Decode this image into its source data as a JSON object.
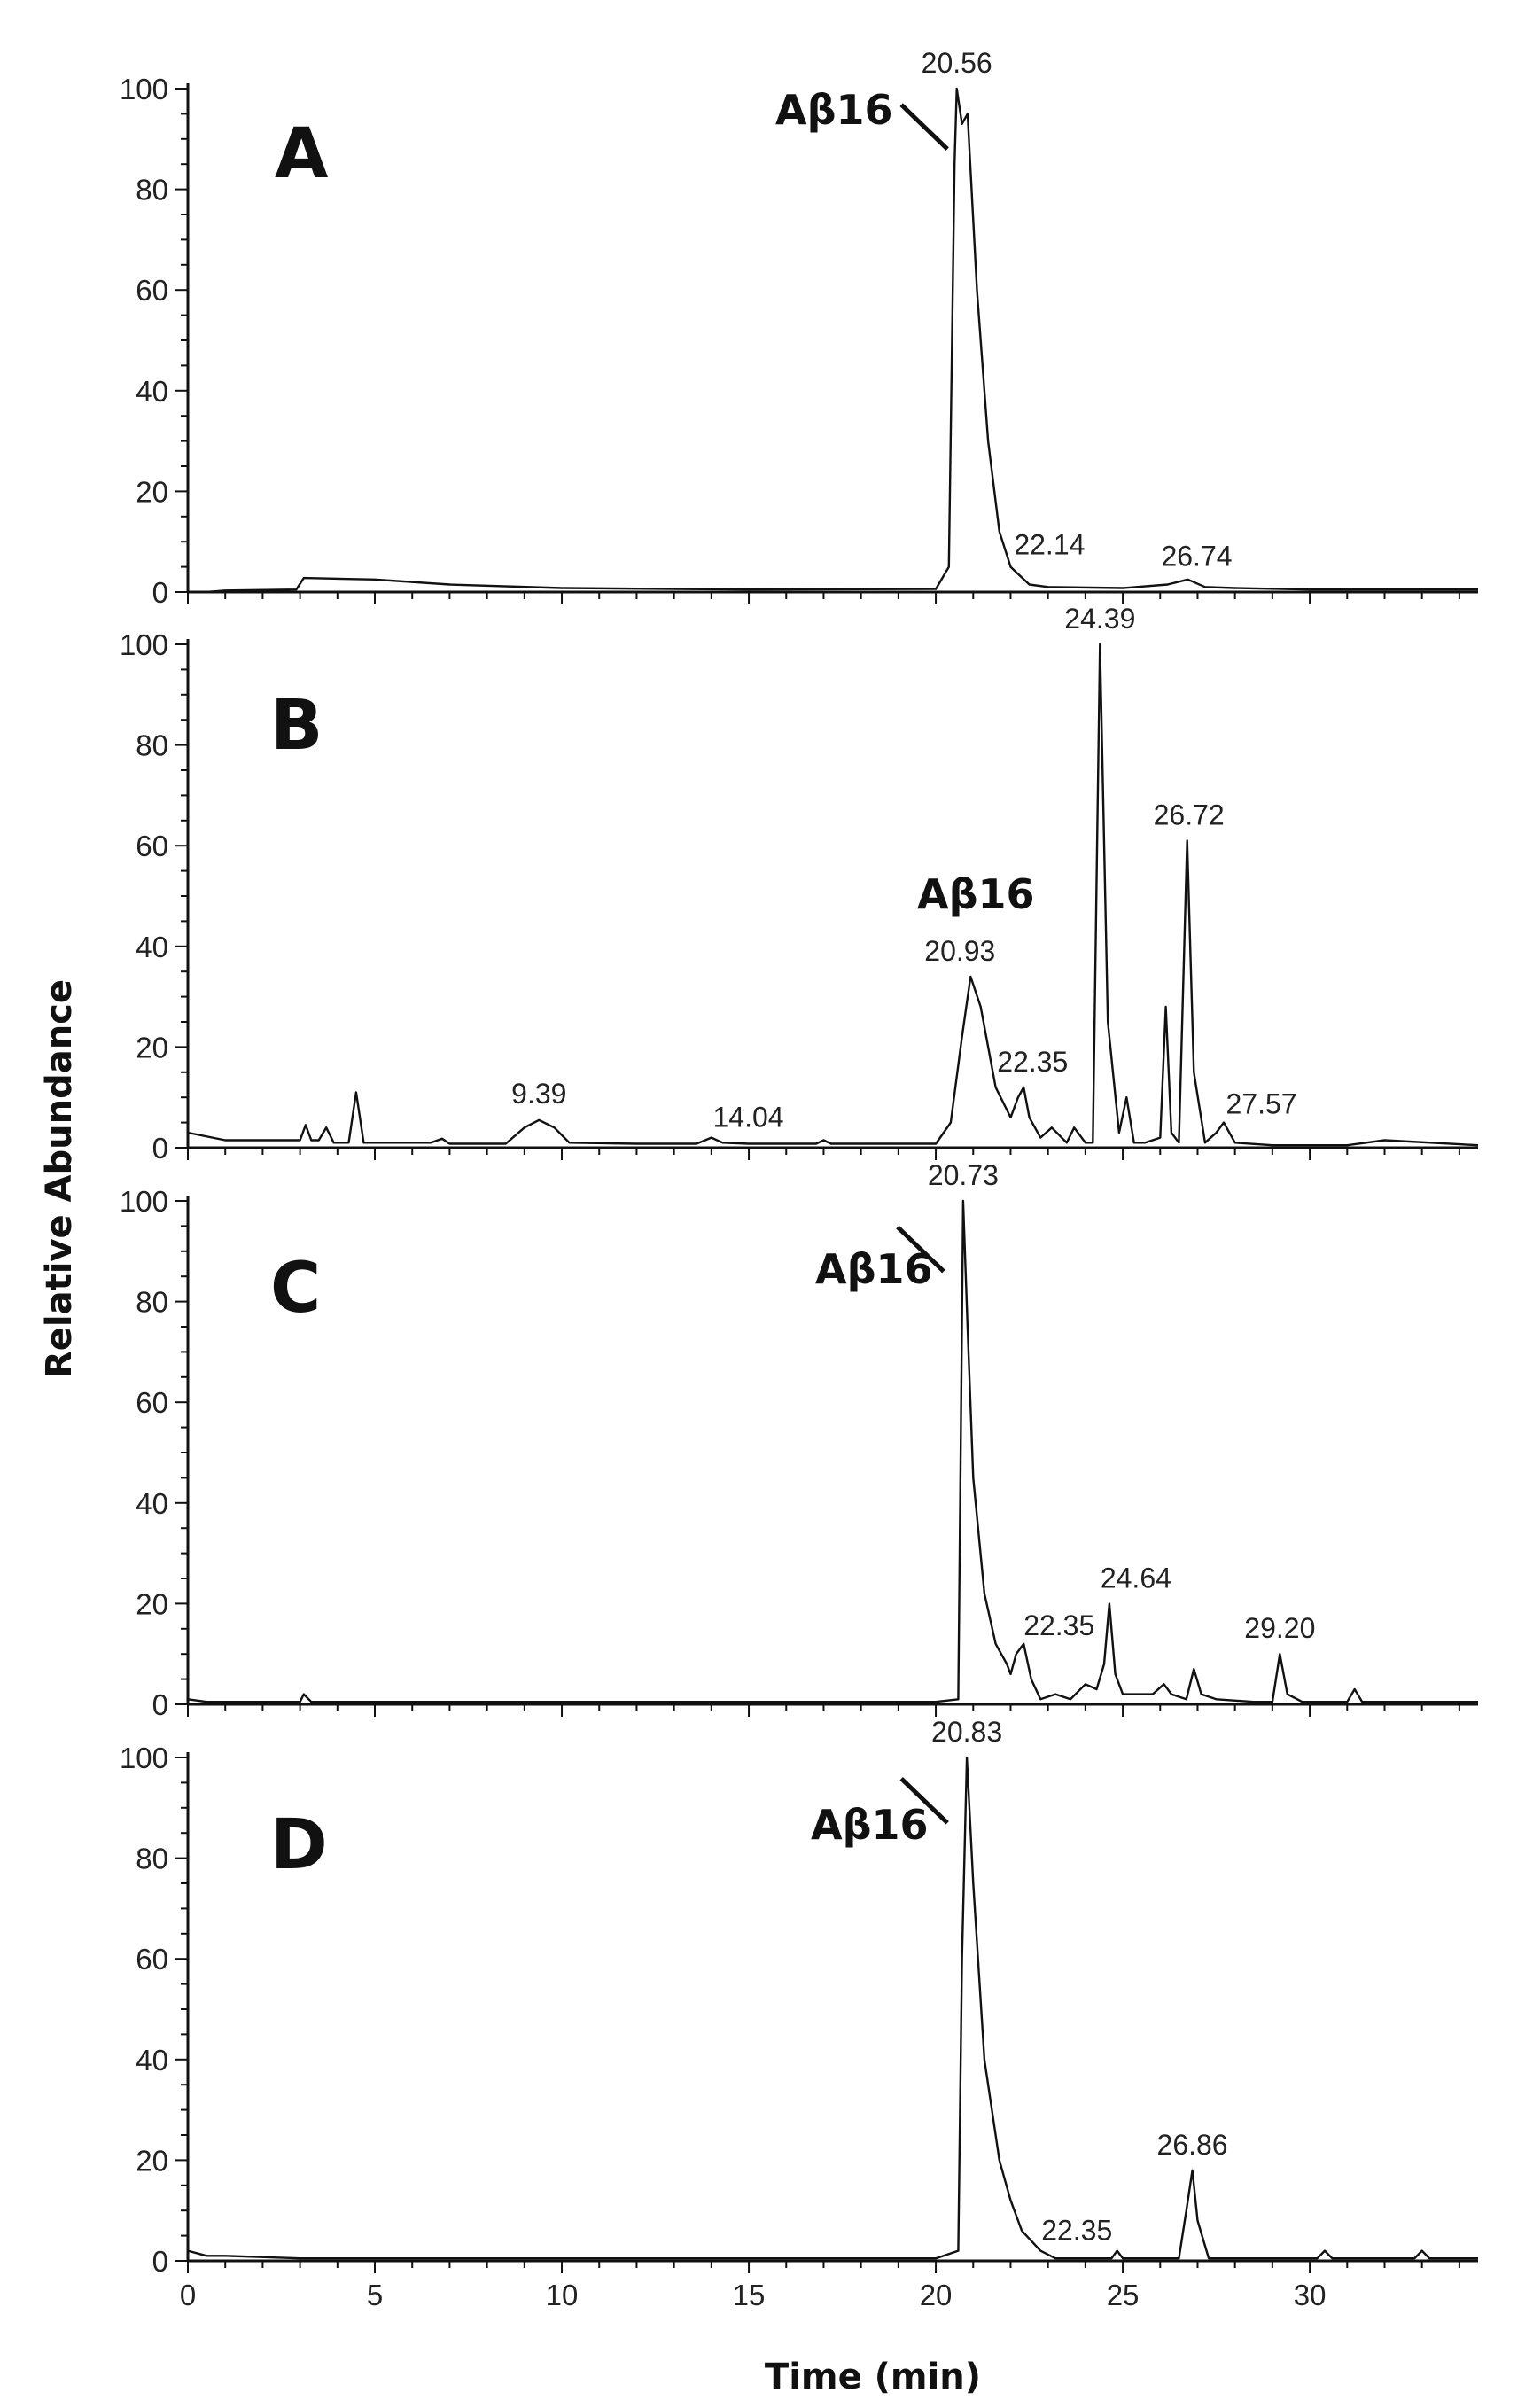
{
  "chart_data": {
    "type": "line",
    "xlabel": "Time (min)",
    "ylabel": "Relative Abundance",
    "xlim": [
      0,
      34.5
    ],
    "ylim": [
      0,
      100
    ],
    "x_ticks": [
      0,
      5,
      10,
      15,
      20,
      25,
      30
    ],
    "y_ticks": [
      0,
      20,
      40,
      60,
      80,
      100
    ],
    "grid": false,
    "panels": [
      {
        "letter": "A",
        "annotation": "Aβ16",
        "annotation_target": [
          20.5,
          88
        ],
        "peak_labels": [
          {
            "text": "20.56",
            "x": 20.56,
            "y": 100
          },
          {
            "text": "22.14",
            "x": 22.14,
            "y": 5
          },
          {
            "text": "26.74",
            "x": 26.74,
            "y": 2
          }
        ],
        "series": [
          {
            "x": [
              0,
              0.5,
              1,
              2.9,
              3.1,
              5,
              7,
              10,
              15,
              20,
              20.35,
              20.5,
              20.56,
              20.7,
              20.85,
              21.1,
              21.4,
              21.7,
              22,
              22.14,
              22.5,
              23,
              25,
              26.2,
              26.74,
              27.2,
              28,
              30,
              32,
              34.5
            ],
            "y": [
              0,
              0,
              0.3,
              0.5,
              2.8,
              2.5,
              1.5,
              0.8,
              0.5,
              0.6,
              5,
              85,
              100,
              93,
              95,
              60,
              30,
              12,
              5,
              4,
              1.5,
              1,
              0.8,
              1.5,
              2.5,
              1,
              0.8,
              0.5,
              0.5,
              0.5
            ]
          }
        ]
      },
      {
        "letter": "B",
        "annotation": "Aβ16",
        "annotation_target": null,
        "peak_labels": [
          {
            "text": "24.39",
            "x": 24.39,
            "y": 100
          },
          {
            "text": "26.72",
            "x": 26.72,
            "y": 61
          },
          {
            "text": "20.93",
            "x": 20.93,
            "y": 34
          },
          {
            "text": "22.35",
            "x": 22.35,
            "y": 12
          },
          {
            "text": "9.39",
            "x": 9.39,
            "y": 6
          },
          {
            "text": "14.04",
            "x": 14.04,
            "y": 2
          },
          {
            "text": "27.57",
            "x": 27.57,
            "y": 5
          }
        ],
        "series": [
          {
            "x": [
              0,
              1,
              2,
              3,
              3.15,
              3.3,
              3.5,
              3.7,
              3.9,
              4.3,
              4.5,
              4.7,
              5,
              6.5,
              6.8,
              7,
              8.5,
              9,
              9.39,
              9.8,
              10.2,
              12,
              13.6,
              14,
              14.3,
              15,
              16.8,
              17,
              17.2,
              20,
              20.4,
              20.7,
              20.93,
              21.2,
              21.6,
              22,
              22.2,
              22.35,
              22.5,
              22.8,
              23.1,
              23.5,
              23.7,
              24,
              24.2,
              24.39,
              24.6,
              24.9,
              25.1,
              25.3,
              25.6,
              26,
              26.15,
              26.3,
              26.5,
              26.72,
              26.9,
              27.2,
              27.5,
              27.7,
              28,
              29,
              30,
              31,
              32,
              34.5
            ],
            "y": [
              3,
              1.5,
              1.5,
              1.5,
              4.5,
              1.5,
              1.5,
              4,
              1,
              1,
              11,
              1,
              1,
              1,
              1.8,
              0.8,
              0.8,
              4,
              5.5,
              4,
              1,
              0.8,
              0.8,
              2,
              1,
              0.8,
              0.8,
              1.5,
              0.8,
              0.8,
              5,
              22,
              34,
              28,
              12,
              6,
              10,
              12,
              6,
              2,
              4,
              1,
              4,
              1,
              1,
              100,
              25,
              3,
              10,
              1,
              1,
              2,
              28,
              3,
              1,
              61,
              15,
              1,
              3,
              5,
              1,
              0.5,
              0.5,
              0.5,
              1.5,
              0.5
            ]
          }
        ]
      },
      {
        "letter": "C",
        "annotation": "Aβ16",
        "annotation_target": [
          20.4,
          86
        ],
        "peak_labels": [
          {
            "text": "20.73",
            "x": 20.73,
            "y": 100
          },
          {
            "text": "22.35",
            "x": 22.35,
            "y": 12
          },
          {
            "text": "24.64",
            "x": 24.64,
            "y": 20
          },
          {
            "text": "29.20",
            "x": 29.2,
            "y": 10
          }
        ],
        "series": [
          {
            "x": [
              0,
              0.5,
              1,
              3,
              3.1,
              3.3,
              5,
              10,
              15,
              20,
              20.6,
              20.73,
              20.85,
              21,
              21.3,
              21.6,
              21.9,
              22,
              22.15,
              22.35,
              22.55,
              22.8,
              23.2,
              23.6,
              24,
              24.3,
              24.5,
              24.64,
              24.8,
              25,
              25.8,
              26.1,
              26.3,
              26.7,
              26.9,
              27.1,
              27.5,
              28.5,
              29,
              29.2,
              29.4,
              29.8,
              31,
              31.2,
              31.4,
              32,
              34.5
            ],
            "y": [
              1,
              0.5,
              0.5,
              0.5,
              2,
              0.5,
              0.5,
              0.5,
              0.5,
              0.5,
              1,
              100,
              75,
              45,
              22,
              12,
              8,
              6,
              10,
              12,
              5,
              1,
              2,
              1,
              4,
              3,
              8,
              20,
              6,
              2,
              2,
              4,
              2,
              1,
              7,
              2,
              1,
              0.5,
              0.5,
              10,
              2,
              0.5,
              0.5,
              3,
              0.5,
              0.5,
              0.5
            ]
          }
        ]
      },
      {
        "letter": "D",
        "annotation": "Aβ16",
        "annotation_target": [
          20.5,
          87
        ],
        "peak_labels": [
          {
            "text": "20.83",
            "x": 20.83,
            "y": 100
          },
          {
            "text": "22.35",
            "x": 22.35,
            "y": 2
          },
          {
            "text": "26.86",
            "x": 26.86,
            "y": 18
          }
        ],
        "series": [
          {
            "x": [
              0,
              0.5,
              1,
              3,
              5,
              10,
              15,
              20,
              20.6,
              20.7,
              20.83,
              21,
              21.3,
              21.7,
              22,
              22.3,
              22.8,
              23.2,
              23.8,
              24.7,
              24.85,
              25,
              26.5,
              26.7,
              26.86,
              27,
              27.3,
              29,
              30.2,
              30.4,
              30.6,
              31,
              32.8,
              33,
              33.2,
              34.5
            ],
            "y": [
              2,
              1,
              1,
              0.5,
              0.5,
              0.5,
              0.5,
              0.5,
              2,
              60,
              100,
              75,
              40,
              20,
              12,
              6,
              2,
              0.5,
              0.5,
              0.5,
              2,
              0.5,
              0.5,
              10,
              18,
              8,
              0.5,
              0.5,
              0.5,
              2,
              0.5,
              0.5,
              0.5,
              2,
              0.5,
              0.5
            ]
          }
        ]
      }
    ]
  }
}
